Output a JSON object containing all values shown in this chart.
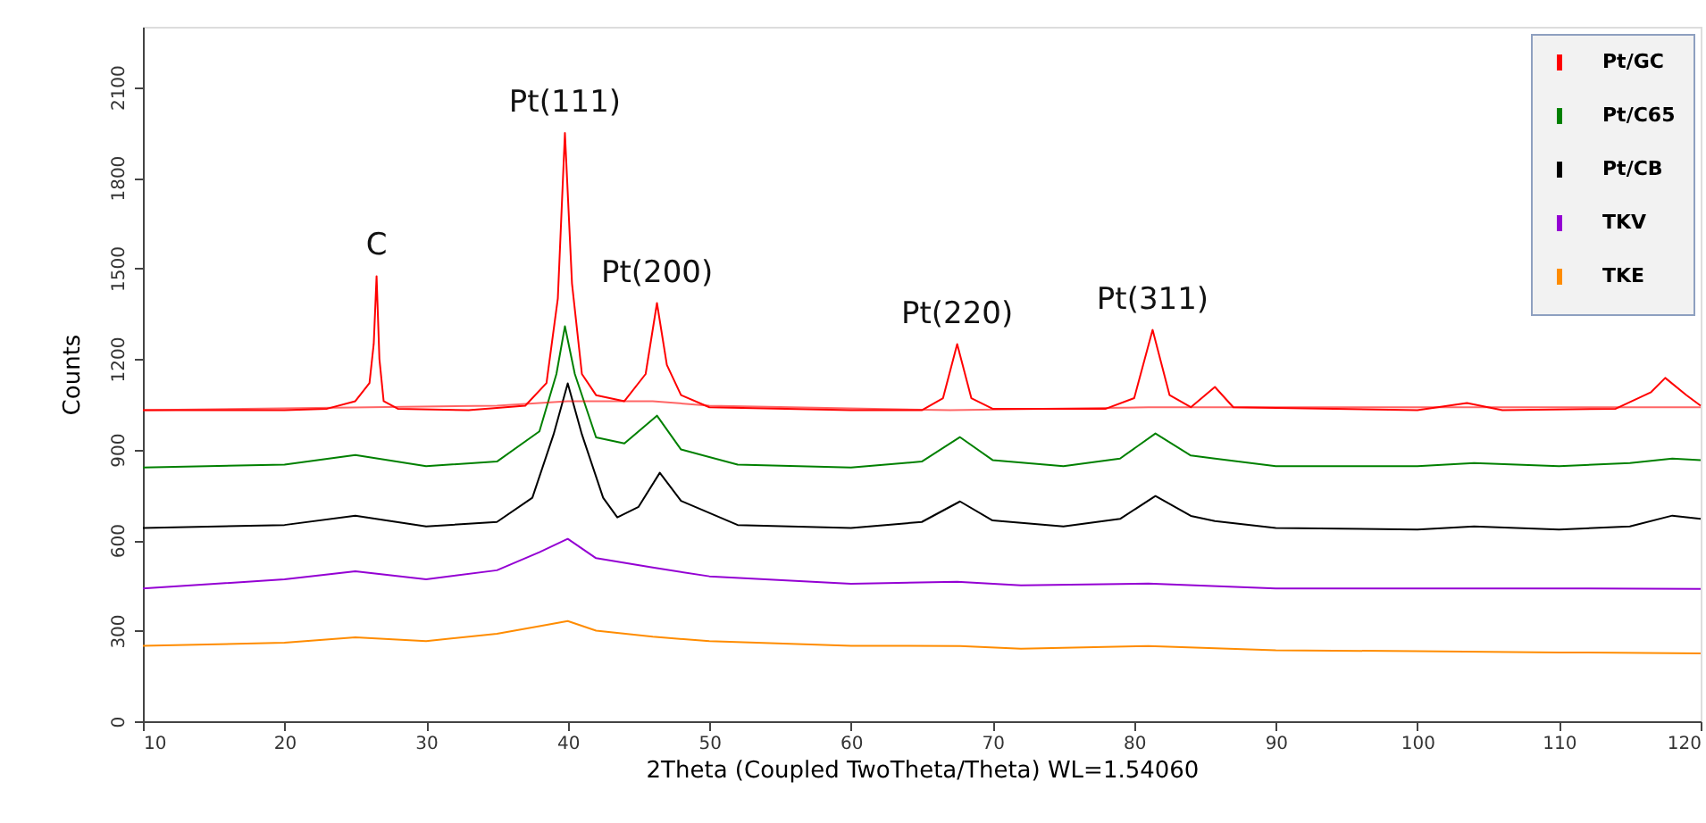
{
  "chart_data": {
    "type": "line",
    "xlabel": "2Theta (Coupled TwoTheta/Theta) WL=1.54060",
    "ylabel": "Counts",
    "xlim": [
      10,
      120
    ],
    "xticks": [
      10,
      20,
      30,
      40,
      50,
      60,
      70,
      80,
      90,
      100,
      110,
      120
    ],
    "ylim": [
      0,
      2300
    ],
    "yticks": [
      0,
      300,
      600,
      900,
      1200,
      1500,
      1800,
      2100
    ],
    "grid": false,
    "legend": "top right",
    "marker": "none",
    "line_style": "solid",
    "annotations": [
      {
        "text": "C",
        "x": 26.5,
        "y": 1474
      },
      {
        "text": "Pt(111)",
        "x": 39.8,
        "y": 1948
      },
      {
        "text": "Pt(200)",
        "x": 46.3,
        "y": 1385
      },
      {
        "text": "Pt(220)",
        "x": 67.5,
        "y": 1249
      },
      {
        "text": "Pt(311)",
        "x": 81.3,
        "y": 1296
      }
    ],
    "series": [
      {
        "name": "Pt/GC",
        "color": "#ff0000",
        "x": [
          10,
          20,
          23,
          25,
          26,
          26.3,
          26.5,
          26.7,
          27,
          28,
          33,
          37,
          38.5,
          39.3,
          39.8,
          40.3,
          41,
          42,
          44,
          45.5,
          46.3,
          47,
          48,
          50,
          60,
          65,
          66.5,
          67.5,
          68.5,
          70,
          78,
          80,
          81.3,
          82.5,
          84,
          85.7,
          87,
          100,
          103.5,
          106,
          114,
          116.5,
          117.5,
          119,
          120
        ],
        "values": [
          1030,
          1030,
          1035,
          1060,
          1120,
          1250,
          1474,
          1200,
          1060,
          1035,
          1030,
          1045,
          1120,
          1400,
          1948,
          1450,
          1150,
          1080,
          1060,
          1150,
          1385,
          1180,
          1080,
          1040,
          1030,
          1030,
          1070,
          1249,
          1070,
          1035,
          1035,
          1070,
          1296,
          1080,
          1040,
          1107,
          1040,
          1030,
          1054,
          1030,
          1035,
          1090,
          1137,
          1080,
          1045
        ]
      },
      {
        "color": "#ff0000",
        "x": [
          10,
          26,
          35,
          40,
          46,
          50,
          67,
          81,
          120
        ],
        "values": [
          1030,
          1040,
          1045,
          1060,
          1060,
          1045,
          1030,
          1040,
          1040
        ]
      },
      {
        "name": "Pt/C65",
        "color": "#008000",
        "x": [
          10,
          20,
          25,
          30,
          35,
          38,
          39.2,
          39.8,
          40.5,
          42,
          44,
          46.3,
          48,
          52,
          60,
          65,
          67.7,
          70,
          75,
          79,
          81.5,
          84,
          85.7,
          90,
          100,
          104,
          110,
          115,
          118,
          120
        ],
        "values": [
          840,
          850,
          882,
          845,
          860,
          960,
          1150,
          1308,
          1150,
          940,
          920,
          1012,
          900,
          850,
          840,
          860,
          941,
          865,
          845,
          870,
          953,
          880,
          870,
          845,
          845,
          855,
          845,
          855,
          870,
          865
        ]
      },
      {
        "name": "Pt/CB",
        "color": "#000000",
        "x": [
          10,
          20,
          25,
          30,
          35,
          37.5,
          39,
          40,
          41,
          42.5,
          43.5,
          45,
          46.5,
          48,
          52,
          60,
          65,
          67.7,
          70,
          75,
          79,
          81.5,
          84,
          85.7,
          90,
          100,
          104,
          110,
          115,
          118,
          120
        ],
        "values": [
          640,
          650,
          681,
          645,
          660,
          740,
          950,
          1119,
          950,
          740,
          675,
          710,
          823,
          730,
          650,
          640,
          660,
          728,
          665,
          645,
          670,
          746,
          680,
          663,
          640,
          635,
          645,
          635,
          645,
          681,
          670
        ]
      },
      {
        "name": "TKV",
        "color": "#9400d3",
        "x": [
          10,
          20,
          25,
          30,
          35,
          38,
          40,
          42,
          46,
          50,
          60,
          67.5,
          72,
          81,
          90,
          100,
          110,
          120
        ],
        "values": [
          440,
          470,
          497,
          470,
          500,
          560,
          604,
          540,
          509,
          480,
          455,
          462,
          450,
          456,
          440,
          440,
          440,
          438
        ]
      },
      {
        "name": "TKE",
        "color": "#ff8c00",
        "x": [
          10,
          20,
          25,
          30,
          35,
          38,
          40,
          42,
          46,
          50,
          60,
          67.7,
          72,
          81,
          90,
          100,
          110,
          120
        ],
        "values": [
          250,
          260,
          278,
          265,
          290,
          315,
          332,
          300,
          280,
          265,
          250,
          249,
          240,
          249,
          235,
          232,
          228,
          225
        ]
      }
    ]
  }
}
